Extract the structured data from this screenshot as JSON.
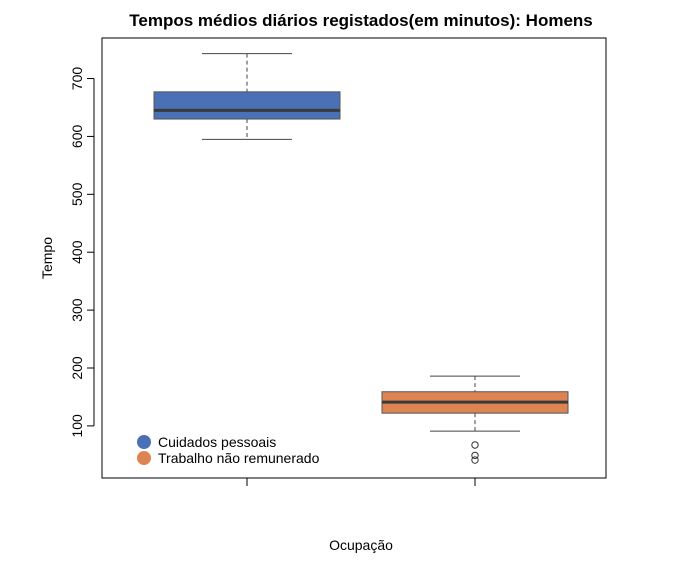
{
  "chart_data": {
    "type": "boxplot",
    "title": "Tempos médios diários registados(em minutos): Homens",
    "xlabel": "Ocupação",
    "ylabel": "Tempo",
    "ylim": [
      10,
      770
    ],
    "yticks": [
      100,
      200,
      300,
      400,
      500,
      600,
      700
    ],
    "categories": [
      "Cuidados pessoais",
      "Trabalho não remunerado"
    ],
    "boxes": [
      {
        "name": "Cuidados pessoais",
        "color": "#4a70b5",
        "whisker_low": 595,
        "q1": 630,
        "median": 645,
        "q3": 677,
        "whisker_high": 743,
        "outliers": []
      },
      {
        "name": "Trabalho não remunerado",
        "color": "#dd8452",
        "whisker_low": 91,
        "q1": 122,
        "median": 141,
        "q3": 159,
        "whisker_high": 186,
        "outliers": [
          41,
          49,
          67
        ]
      }
    ],
    "legend": {
      "position": "bottom-left",
      "items": [
        {
          "label": "Cuidados pessoais",
          "color": "#4a70b5"
        },
        {
          "label": "Trabalho não remunerado",
          "color": "#dd8452"
        }
      ]
    }
  }
}
